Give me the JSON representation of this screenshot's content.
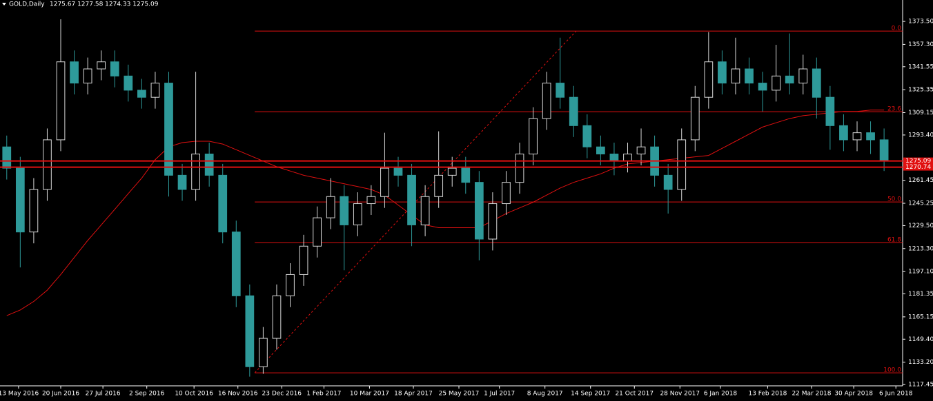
{
  "chart_data": {
    "type": "candlestick",
    "title": "GOLD,Daily",
    "subtitle": "1275.67 1277.58 1274.33 1275.09",
    "up_color": "#d8d8d8",
    "down_color": "#2e9a9a",
    "xlim": [
      0,
      535
    ],
    "ylim": [
      1116.5,
      1388.6
    ],
    "xticks": [
      {
        "value": 11,
        "label": "13 May 2016"
      },
      {
        "value": 36,
        "label": "20 Jun 2016"
      },
      {
        "value": 61,
        "label": "27 Jul 2016"
      },
      {
        "value": 87,
        "label": "2 Sep 2016"
      },
      {
        "value": 115,
        "label": "10 Oct 2016"
      },
      {
        "value": 141,
        "label": "16 Nov 2016"
      },
      {
        "value": 167,
        "label": "23 Dec 2016"
      },
      {
        "value": 192,
        "label": "1 Feb 2017"
      },
      {
        "value": 219,
        "label": "10 Mar 2017"
      },
      {
        "value": 245,
        "label": "18 Apr 2017"
      },
      {
        "value": 272,
        "label": "25 May 2017"
      },
      {
        "value": 296,
        "label": "1 Jul 2017"
      },
      {
        "value": 323,
        "label": "8 Aug 2017"
      },
      {
        "value": 350,
        "label": "14 Sep 2017"
      },
      {
        "value": 376,
        "label": "21 Oct 2017"
      },
      {
        "value": 403,
        "label": "28 Nov 2017"
      },
      {
        "value": 427,
        "label": "6 Jan 2018"
      },
      {
        "value": 455,
        "label": "13 Feb 2018"
      },
      {
        "value": 481,
        "label": "22 Mar 2018"
      },
      {
        "value": 506,
        "label": "30 Apr 2018"
      },
      {
        "value": 531,
        "label": "6 Jun 2018"
      }
    ],
    "yticks": [
      {
        "value": 1373.5,
        "label": "1373.50"
      },
      {
        "value": 1357.3,
        "label": "1357.30"
      },
      {
        "value": 1341.55,
        "label": "1341.55"
      },
      {
        "value": 1325.35,
        "label": "1325.35"
      },
      {
        "value": 1309.15,
        "label": "1309.15"
      },
      {
        "value": 1293.4,
        "label": "1293.40"
      },
      {
        "value": 1261.45,
        "label": "1261.45"
      },
      {
        "value": 1245.25,
        "label": "1245.25"
      },
      {
        "value": 1229.5,
        "label": "1229.50"
      },
      {
        "value": 1213.3,
        "label": "1213.30"
      },
      {
        "value": 1197.1,
        "label": "1197.10"
      },
      {
        "value": 1181.35,
        "label": "1181.35"
      },
      {
        "value": 1165.15,
        "label": "1165.15"
      },
      {
        "value": 1149.4,
        "label": "1149.40"
      },
      {
        "value": 1133.2,
        "label": "1133.20"
      },
      {
        "value": 1117.45,
        "label": "1117.45"
      }
    ],
    "x": [
      4,
      12,
      20,
      28,
      36,
      44,
      52,
      60,
      68,
      76,
      84,
      92,
      100,
      108,
      116,
      124,
      132,
      140,
      148,
      156,
      164,
      172,
      180,
      188,
      196,
      204,
      212,
      220,
      228,
      236,
      244,
      252,
      260,
      268,
      276,
      284,
      292,
      300,
      308,
      316,
      324,
      332,
      340,
      348,
      356,
      364,
      372,
      380,
      388,
      396,
      404,
      412,
      420,
      428,
      436,
      444,
      452,
      460,
      468,
      476,
      484,
      492,
      500,
      508,
      516,
      524
    ],
    "open": [
      1285,
      1270,
      1225,
      1255,
      1290,
      1345,
      1330,
      1340,
      1345,
      1335,
      1325,
      1320,
      1330,
      1265,
      1255,
      1280,
      1265,
      1225,
      1180,
      1130,
      1150,
      1180,
      1195,
      1215,
      1235,
      1250,
      1230,
      1245,
      1250,
      1270,
      1265,
      1230,
      1250,
      1265,
      1270,
      1260,
      1220,
      1245,
      1260,
      1280,
      1305,
      1330,
      1320,
      1300,
      1285,
      1280,
      1275,
      1280,
      1285,
      1265,
      1255,
      1290,
      1320,
      1345,
      1330,
      1340,
      1330,
      1325,
      1335,
      1330,
      1340,
      1320,
      1300,
      1290,
      1295,
      1290
    ],
    "high": [
      1293,
      1278,
      1263,
      1298,
      1375,
      1353,
      1348,
      1353,
      1353,
      1343,
      1333,
      1338,
      1338,
      1273,
      1338,
      1288,
      1273,
      1233,
      1188,
      1158,
      1188,
      1203,
      1223,
      1243,
      1263,
      1258,
      1253,
      1258,
      1295,
      1278,
      1273,
      1258,
      1296,
      1278,
      1278,
      1268,
      1253,
      1268,
      1288,
      1313,
      1338,
      1362,
      1328,
      1308,
      1293,
      1288,
      1288,
      1298,
      1293,
      1273,
      1298,
      1328,
      1366,
      1353,
      1362,
      1348,
      1338,
      1357,
      1365,
      1350,
      1348,
      1328,
      1308,
      1303,
      1303,
      1298
    ],
    "low": [
      1262,
      1200,
      1217,
      1247,
      1282,
      1322,
      1322,
      1332,
      1327,
      1317,
      1312,
      1312,
      1250,
      1247,
      1247,
      1257,
      1217,
      1172,
      1123,
      1125,
      1142,
      1172,
      1187,
      1207,
      1227,
      1198,
      1222,
      1237,
      1242,
      1257,
      1215,
      1222,
      1242,
      1257,
      1252,
      1205,
      1212,
      1237,
      1252,
      1272,
      1297,
      1312,
      1292,
      1277,
      1272,
      1265,
      1267,
      1272,
      1257,
      1238,
      1247,
      1282,
      1312,
      1322,
      1322,
      1322,
      1310,
      1317,
      1322,
      1322,
      1305,
      1283,
      1282,
      1282,
      1280,
      1268
    ],
    "close": [
      1270,
      1225,
      1255,
      1290,
      1345,
      1330,
      1340,
      1345,
      1335,
      1325,
      1320,
      1330,
      1265,
      1255,
      1280,
      1265,
      1225,
      1180,
      1130,
      1150,
      1180,
      1195,
      1215,
      1235,
      1250,
      1230,
      1245,
      1250,
      1270,
      1265,
      1230,
      1250,
      1265,
      1270,
      1260,
      1220,
      1245,
      1260,
      1280,
      1305,
      1330,
      1320,
      1300,
      1285,
      1280,
      1275,
      1280,
      1285,
      1265,
      1255,
      1290,
      1320,
      1345,
      1330,
      1340,
      1330,
      1325,
      1335,
      1330,
      1340,
      1320,
      1300,
      1290,
      1295,
      1290,
      1275
    ],
    "overlay": {
      "color": "#e01010",
      "values": [
        1166,
        1170,
        1176,
        1184,
        1195,
        1207,
        1219,
        1230,
        1241,
        1252,
        1263,
        1276,
        1285,
        1288,
        1289,
        1289,
        1287,
        1283,
        1279,
        1275,
        1271,
        1268,
        1265,
        1263,
        1261,
        1259,
        1257,
        1255,
        1251,
        1244,
        1237,
        1230,
        1228,
        1228,
        1228,
        1228,
        1233,
        1238,
        1242,
        1246,
        1251,
        1256,
        1260,
        1263,
        1266,
        1270,
        1273,
        1274,
        1275,
        1276,
        1277,
        1278,
        1279,
        1284,
        1289,
        1294,
        1299,
        1302,
        1305,
        1307,
        1308,
        1309,
        1310,
        1310,
        1311,
        1311
      ]
    },
    "fib_color": "#e01010",
    "fib_start": 151,
    "fib_levels": [
      {
        "label": "0.0",
        "value": 1366.7
      },
      {
        "label": "23.6",
        "value": 1309.8
      },
      {
        "label": "50.0",
        "value": 1246.2
      },
      {
        "label": "61.8",
        "value": 1217.5
      },
      {
        "label": "100.0",
        "value": 1125.7
      }
    ],
    "trendline": {
      "x": [
        151,
        341.5
      ],
      "y": [
        1125.7,
        1366.7
      ]
    },
    "price_lines": [
      {
        "label": "1275.09",
        "value": 1275.09
      },
      {
        "label": "1270.74",
        "value": 1270.74
      }
    ]
  }
}
